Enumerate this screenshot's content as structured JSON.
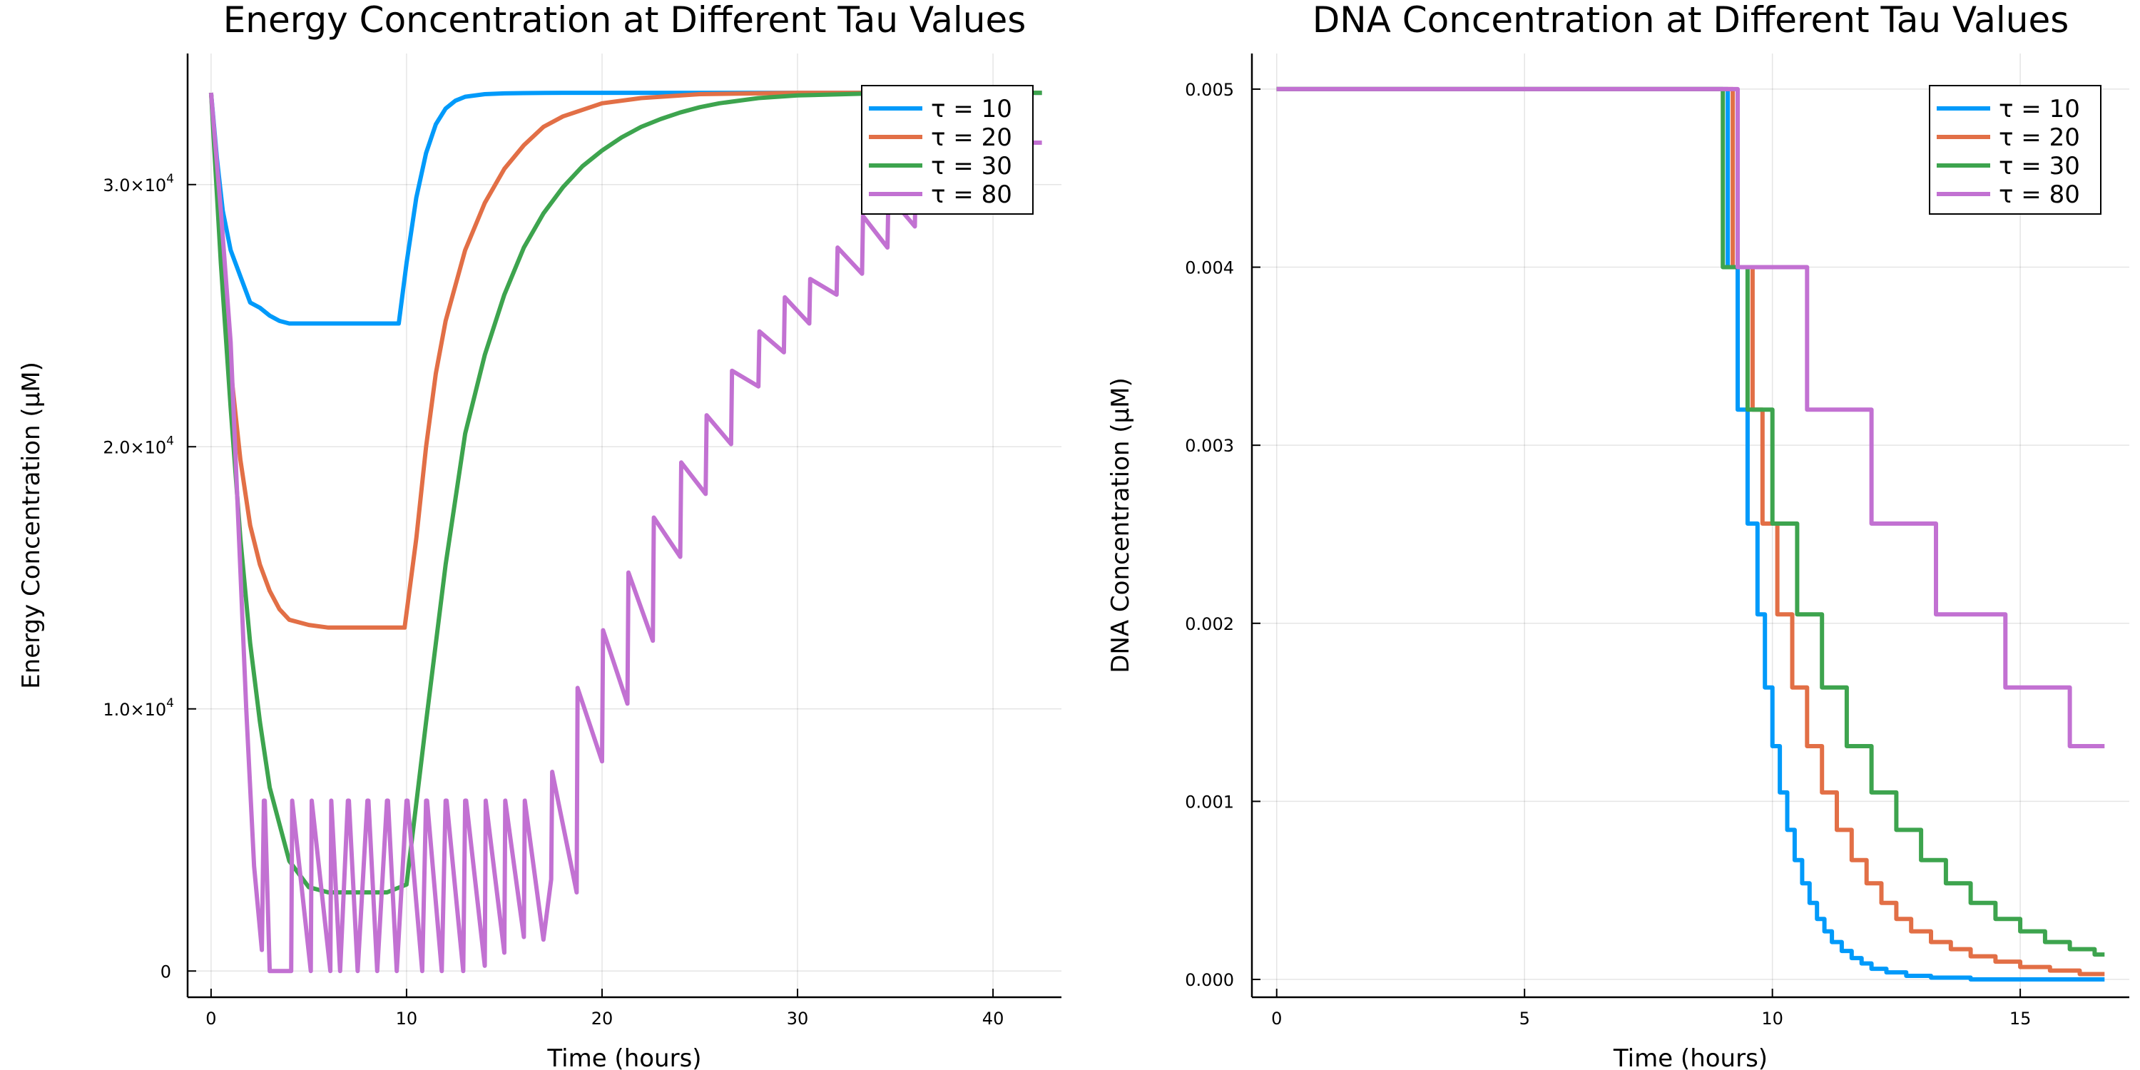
{
  "chart_data": [
    {
      "type": "line",
      "title": "Energy Concentration at Different Tau Values",
      "xlabel": "Time (hours)",
      "ylabel": "Energy Concentration (μM)",
      "xlim": [
        -1.2,
        43.5
      ],
      "ylim": [
        -1000,
        35000
      ],
      "xticks": [
        0,
        10,
        20,
        30,
        40
      ],
      "xtick_labels": [
        "0",
        "10",
        "20",
        "30",
        "40"
      ],
      "yticks": [
        0,
        10000,
        20000,
        30000
      ],
      "ytick_labels": [
        {
          "mantissa": "0",
          "exp": ""
        },
        {
          "mantissa": "1.0×10",
          "exp": "4"
        },
        {
          "mantissa": "2.0×10",
          "exp": "4"
        },
        {
          "mantissa": "3.0×10",
          "exp": "4"
        }
      ],
      "grid": true,
      "legend_position": "top-right",
      "series": [
        {
          "name": "τ = 10",
          "color": "#009AFA",
          "x": [
            0,
            0.3,
            0.6,
            1.0,
            1.5,
            2.0,
            2.5,
            3.0,
            3.5,
            4.0,
            5.0,
            6.0,
            7.0,
            8.0,
            9.0,
            9.6,
            10.0,
            10.5,
            11.0,
            11.5,
            12.0,
            12.5,
            13.0,
            14.0,
            15.0,
            16.0,
            18.0,
            20.0,
            42.5
          ],
          "y": [
            33500,
            31000,
            29000,
            27500,
            26500,
            25500,
            25300,
            25000,
            24800,
            24700,
            24700,
            24700,
            24700,
            24700,
            24700,
            24700,
            27000,
            29500,
            31200,
            32300,
            32900,
            33200,
            33350,
            33450,
            33480,
            33490,
            33500,
            33500,
            33500
          ]
        },
        {
          "name": "τ = 20",
          "color": "#E26F46",
          "x": [
            0,
            0.5,
            1.0,
            1.5,
            2.0,
            2.5,
            3.0,
            3.5,
            4.0,
            5.0,
            6.0,
            7.0,
            8.0,
            9.0,
            9.9,
            10.5,
            11.0,
            11.5,
            12.0,
            13.0,
            14.0,
            15.0,
            16.0,
            17.0,
            18.0,
            20.0,
            22.0,
            25.0,
            30.0,
            42.5
          ],
          "y": [
            33500,
            28000,
            23000,
            19500,
            17000,
            15500,
            14500,
            13800,
            13400,
            13200,
            13100,
            13100,
            13100,
            13100,
            13100,
            16500,
            20000,
            22800,
            24800,
            27500,
            29300,
            30600,
            31500,
            32200,
            32600,
            33100,
            33300,
            33450,
            33500,
            33500
          ]
        },
        {
          "name": "τ = 30",
          "color": "#3DA44E",
          "x": [
            0,
            0.5,
            1.0,
            1.5,
            2.0,
            2.5,
            3.0,
            4.0,
            5.0,
            6.0,
            7.0,
            8.0,
            9.0,
            10.0,
            11.0,
            12.0,
            13.0,
            14.0,
            15.0,
            16.0,
            17.0,
            18.0,
            19.0,
            20.0,
            21.0,
            22.0,
            23.0,
            24.0,
            25.0,
            26.0,
            28.0,
            30.0,
            35.0,
            42.5
          ],
          "y": [
            33500,
            27000,
            21500,
            16500,
            12500,
            9500,
            7000,
            4200,
            3200,
            3000,
            3000,
            3000,
            3000,
            3300,
            9500,
            15500,
            20500,
            23500,
            25800,
            27600,
            28900,
            29900,
            30700,
            31300,
            31800,
            32200,
            32500,
            32750,
            32950,
            33100,
            33300,
            33400,
            33500,
            33500
          ]
        },
        {
          "name": "τ = 80",
          "color": "#C271D2",
          "x": [
            0,
            0.5,
            1.0,
            1.4,
            1.8,
            2.2,
            2.6,
            2.7,
            2.75,
            3.0,
            4.1,
            4.15,
            5.1,
            5.15,
            6.1,
            6.15,
            6.6,
            7.0,
            7.05,
            7.5,
            8.0,
            8.05,
            8.5,
            9.0,
            9.05,
            9.5,
            10.0,
            10.05,
            10.8,
            11.0,
            11.05,
            11.8,
            12.0,
            12.05,
            12.9,
            13.0,
            13.05,
            14.0,
            14.05,
            15.0,
            15.05,
            16.0,
            16.05,
            17.0,
            17.4,
            17.45,
            18.7,
            18.75,
            20.0,
            20.05,
            21.3,
            21.35,
            22.6,
            22.65,
            24.0,
            24.05,
            25.3,
            25.35,
            26.6,
            26.65,
            28.0,
            28.05,
            29.3,
            29.35,
            30.6,
            30.65,
            32.0,
            32.05,
            33.3,
            33.35,
            34.6,
            34.65,
            36.0,
            36.05,
            37.3,
            37.35,
            38.6,
            38.65,
            40.0,
            40.05,
            41.3,
            41.35,
            42.5
          ],
          "y": [
            33500,
            29000,
            24000,
            17000,
            10000,
            4000,
            800,
            6500,
            6500,
            0,
            0,
            6500,
            0,
            6500,
            0,
            6500,
            0,
            6500,
            6500,
            0,
            6500,
            6500,
            0,
            6500,
            6500,
            0,
            6500,
            6500,
            0,
            6500,
            6500,
            0,
            6500,
            6500,
            0,
            6500,
            6500,
            200,
            6500,
            700,
            6500,
            1300,
            6500,
            1200,
            3500,
            7600,
            3000,
            10800,
            8000,
            13000,
            10200,
            15200,
            12600,
            17300,
            15800,
            19400,
            18200,
            21200,
            20100,
            22900,
            22300,
            24400,
            23600,
            25700,
            24700,
            26400,
            25800,
            27600,
            26600,
            28800,
            27600,
            29600,
            28400,
            30400,
            29000,
            31100,
            29700,
            31500,
            30200,
            31800,
            30600,
            31600,
            31600
          ]
        }
      ]
    },
    {
      "type": "line",
      "title": "DNA Concentration at Different Tau Values",
      "xlabel": "Time (hours)",
      "ylabel": "DNA Concentration (μM)",
      "xlim": [
        -0.5,
        17.2
      ],
      "ylim": [
        -0.0001,
        0.0052
      ],
      "xticks": [
        0,
        5,
        10,
        15
      ],
      "xtick_labels": [
        "0",
        "5",
        "10",
        "15"
      ],
      "yticks": [
        0,
        0.001,
        0.002,
        0.003,
        0.004,
        0.005
      ],
      "ytick_labels": [
        "0.000",
        "0.001",
        "0.002",
        "0.003",
        "0.004",
        "0.005"
      ],
      "grid": true,
      "legend_position": "top-right",
      "series": [
        {
          "name": "τ = 10",
          "color": "#009AFA",
          "x": [
            0,
            9.1,
            9.1,
            9.3,
            9.3,
            9.5,
            9.5,
            9.7,
            9.7,
            9.85,
            9.85,
            10.0,
            10.0,
            10.15,
            10.15,
            10.3,
            10.3,
            10.45,
            10.45,
            10.6,
            10.6,
            10.75,
            10.75,
            10.9,
            10.9,
            11.05,
            11.05,
            11.2,
            11.2,
            11.4,
            11.4,
            11.6,
            11.6,
            11.8,
            11.8,
            12.0,
            12.0,
            12.3,
            12.3,
            12.7,
            12.7,
            13.2,
            13.2,
            14.0,
            14.0,
            16.7
          ],
          "y": [
            0.005,
            0.005,
            0.004,
            0.004,
            0.0032,
            0.0032,
            0.00256,
            0.00256,
            0.00205,
            0.00205,
            0.00164,
            0.00164,
            0.00131,
            0.00131,
            0.00105,
            0.00105,
            0.00084,
            0.00084,
            0.00067,
            0.00067,
            0.00054,
            0.00054,
            0.00043,
            0.00043,
            0.00034,
            0.00034,
            0.00027,
            0.00027,
            0.00021,
            0.00021,
            0.00016,
            0.00016,
            0.00012,
            0.00012,
            9e-05,
            9e-05,
            6e-05,
            6e-05,
            4e-05,
            4e-05,
            2e-05,
            2e-05,
            1e-05,
            1e-05,
            0.0,
            0.0
          ]
        },
        {
          "name": "τ = 20",
          "color": "#E26F46",
          "x": [
            0,
            9.2,
            9.2,
            9.6,
            9.6,
            9.8,
            9.8,
            10.1,
            10.1,
            10.4,
            10.4,
            10.7,
            10.7,
            11.0,
            11.0,
            11.3,
            11.3,
            11.6,
            11.6,
            11.9,
            11.9,
            12.2,
            12.2,
            12.5,
            12.5,
            12.8,
            12.8,
            13.2,
            13.2,
            13.6,
            13.6,
            14.0,
            14.0,
            14.5,
            14.5,
            15.0,
            15.0,
            15.6,
            15.6,
            16.2,
            16.2,
            16.7
          ],
          "y": [
            0.005,
            0.005,
            0.004,
            0.004,
            0.0032,
            0.0032,
            0.00256,
            0.00256,
            0.00205,
            0.00205,
            0.00164,
            0.00164,
            0.00131,
            0.00131,
            0.00105,
            0.00105,
            0.00084,
            0.00084,
            0.00067,
            0.00067,
            0.00054,
            0.00054,
            0.00043,
            0.00043,
            0.00034,
            0.00034,
            0.00027,
            0.00027,
            0.00021,
            0.00021,
            0.00017,
            0.00017,
            0.00013,
            0.00013,
            0.0001,
            0.0001,
            7e-05,
            7e-05,
            5e-05,
            5e-05,
            3e-05,
            3e-05
          ]
        },
        {
          "name": "τ = 30",
          "color": "#3DA44E",
          "x": [
            0,
            9.0,
            9.0,
            9.5,
            9.5,
            10.0,
            10.0,
            10.5,
            10.5,
            11.0,
            11.0,
            11.5,
            11.5,
            12.0,
            12.0,
            12.5,
            12.5,
            13.0,
            13.0,
            13.5,
            13.5,
            14.0,
            14.0,
            14.5,
            14.5,
            15.0,
            15.0,
            15.5,
            15.5,
            16.0,
            16.0,
            16.5,
            16.5,
            16.7
          ],
          "y": [
            0.005,
            0.005,
            0.004,
            0.004,
            0.0032,
            0.0032,
            0.00256,
            0.00256,
            0.00205,
            0.00205,
            0.00164,
            0.00164,
            0.00131,
            0.00131,
            0.00105,
            0.00105,
            0.00084,
            0.00084,
            0.00067,
            0.00067,
            0.00054,
            0.00054,
            0.00043,
            0.00043,
            0.00034,
            0.00034,
            0.00027,
            0.00027,
            0.00021,
            0.00021,
            0.00017,
            0.00017,
            0.00014,
            0.00014
          ]
        },
        {
          "name": "τ = 80",
          "color": "#C271D2",
          "x": [
            0,
            9.3,
            9.3,
            10.7,
            10.7,
            12.0,
            12.0,
            13.3,
            13.3,
            14.7,
            14.7,
            16.0,
            16.0,
            16.7
          ],
          "y": [
            0.005,
            0.005,
            0.004,
            0.004,
            0.0032,
            0.0032,
            0.00256,
            0.00256,
            0.00205,
            0.00205,
            0.00164,
            0.00164,
            0.00131,
            0.00131
          ]
        }
      ]
    }
  ]
}
